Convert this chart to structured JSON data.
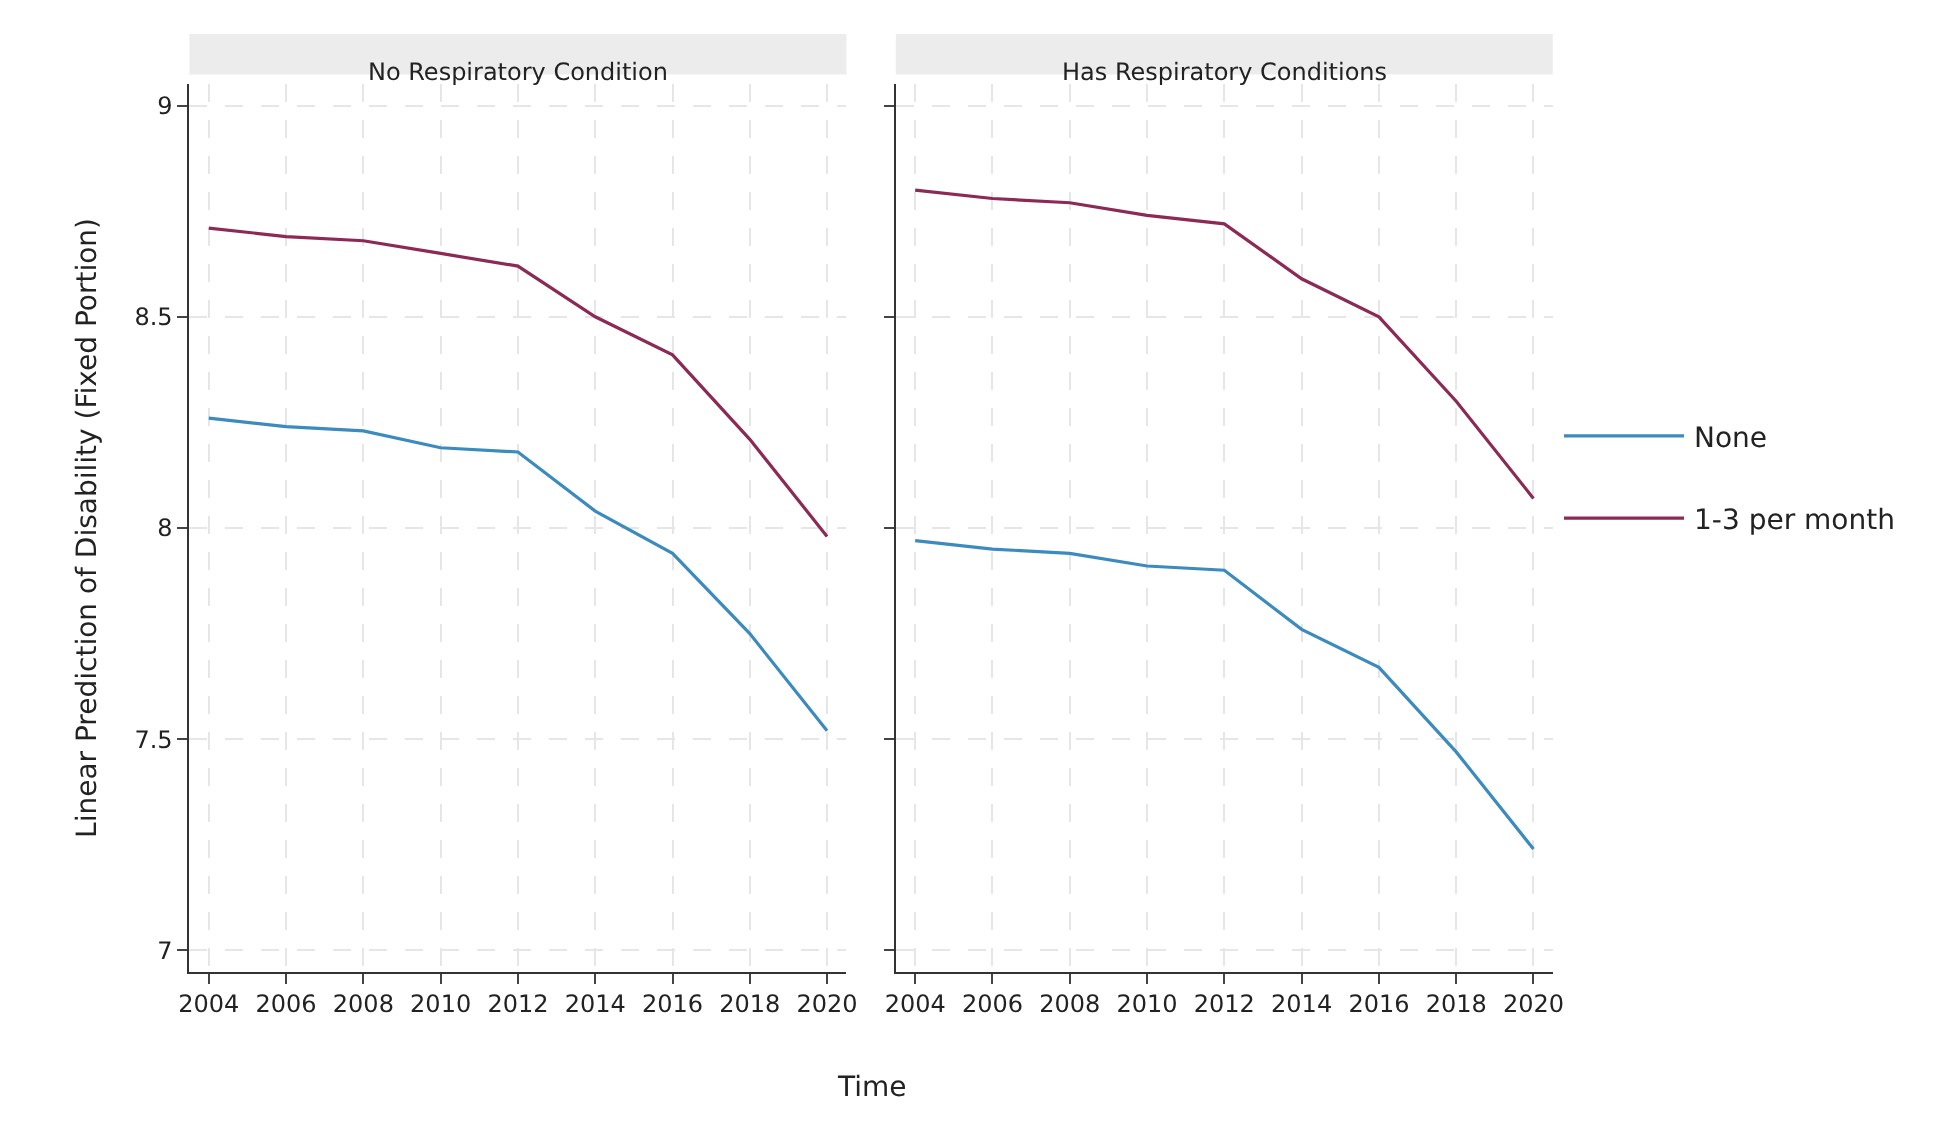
{
  "chart_data": [
    {
      "type": "line",
      "title": "No Respiratory Condition",
      "xlabel": "Time",
      "ylabel": "Linear Prediction of Disability (Fixed Portion)",
      "x": [
        2004,
        2006,
        2008,
        2010,
        2012,
        2014,
        2016,
        2018,
        2020
      ],
      "series": [
        {
          "name": "None",
          "color": "#3b8bbf",
          "values": [
            8.26,
            8.24,
            8.23,
            8.19,
            8.18,
            8.04,
            7.94,
            7.75,
            7.52
          ]
        },
        {
          "name": "1-3 per month",
          "color": "#8c2a55",
          "values": [
            8.71,
            8.69,
            8.68,
            8.65,
            8.62,
            8.5,
            8.41,
            8.21,
            7.98
          ]
        }
      ],
      "xlim": [
        2003.5,
        2020.5
      ],
      "xticks": [
        2004,
        2006,
        2008,
        2010,
        2012,
        2014,
        2016,
        2018,
        2020
      ],
      "ylim": [
        6.95,
        9.05
      ],
      "yticks": [
        7,
        7.5,
        8,
        8.5,
        9
      ],
      "grid": true,
      "legend": "right",
      "line_style": "solid",
      "marker": "none"
    },
    {
      "type": "line",
      "title": "Has Respiratory Conditions",
      "x": [
        2004,
        2006,
        2008,
        2010,
        2012,
        2014,
        2016,
        2018,
        2020
      ],
      "series": [
        {
          "color": "#3b8bbf",
          "values": [
            7.97,
            7.95,
            7.94,
            7.91,
            7.9,
            7.76,
            7.67,
            7.47,
            7.24
          ]
        },
        {
          "color": "#8c2a55",
          "values": [
            8.8,
            8.78,
            8.77,
            8.74,
            8.72,
            8.59,
            8.5,
            8.3,
            8.07
          ]
        }
      ],
      "xlim": [
        2003.5,
        2020.5
      ],
      "xticks": [
        2004,
        2006,
        2008,
        2010,
        2012,
        2014,
        2016,
        2018,
        2020
      ],
      "ylim": [
        6.95,
        9.05
      ],
      "yticks": [
        7,
        7.5,
        8,
        8.5,
        9
      ],
      "grid": true,
      "tick_labels": "x",
      "line_style": "solid",
      "marker": "none"
    }
  ]
}
